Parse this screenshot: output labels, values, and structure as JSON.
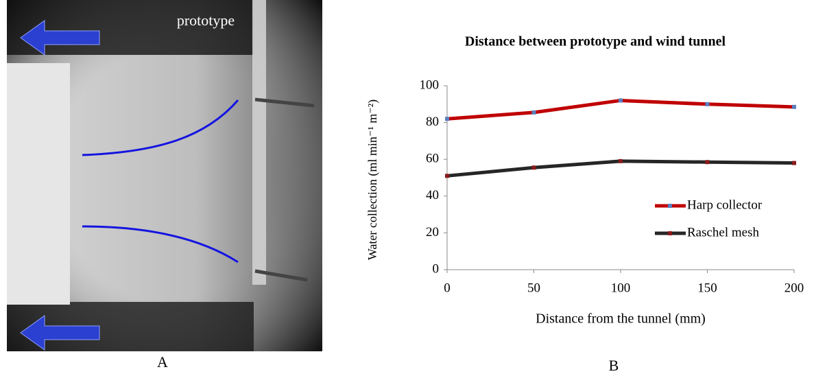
{
  "panels": {
    "photo_label": "prototype",
    "a_label": "A",
    "b_label": "B"
  },
  "chart_data": {
    "type": "line",
    "title": "Distance between prototype and wind tunnel",
    "xlabel": "Distance from the tunnel (mm)",
    "ylabel": "Water collection (ml min⁻¹ m⁻²)",
    "x": [
      0,
      50,
      100,
      150,
      200
    ],
    "series": [
      {
        "name": "Harp collector",
        "color": "#c00000",
        "marker_color": "#5b7fbf",
        "values": [
          82,
          85.5,
          92,
          90,
          88.5
        ]
      },
      {
        "name": "Raschel mesh",
        "color": "#262626",
        "marker_color": "#8b1a1a",
        "values": [
          51,
          55.5,
          59,
          58.5,
          58
        ]
      }
    ],
    "xlim": [
      0,
      200
    ],
    "xticks": [
      0,
      50,
      100,
      150,
      200
    ],
    "ylim": [
      0,
      100
    ],
    "yticks": [
      0,
      20,
      40,
      60,
      80,
      100
    ],
    "legend": "right"
  }
}
